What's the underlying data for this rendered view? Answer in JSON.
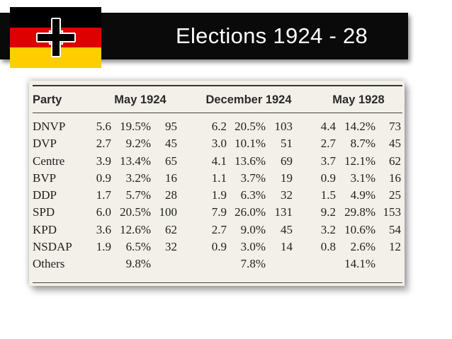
{
  "slide": {
    "title": "Elections 1924 - 28",
    "colors": {
      "title_bar": "#0a0a0a",
      "flag_black": "#000000",
      "flag_red": "#dd0000",
      "flag_gold": "#ffce00"
    },
    "flag_icon": "german-imperial-war-flag-cross"
  },
  "table": {
    "headers": [
      "Party",
      "May 1924",
      "December 1924",
      "May 1928"
    ],
    "rows": [
      [
        "DNVP",
        "5.6",
        "19.5%",
        "95",
        "6.2",
        "20.5%",
        "103",
        "4.4",
        "14.2%",
        "73"
      ],
      [
        "DVP",
        "2.7",
        "9.2%",
        "45",
        "3.0",
        "10.1%",
        "51",
        "2.7",
        "8.7%",
        "45"
      ],
      [
        "Centre",
        "3.9",
        "13.4%",
        "65",
        "4.1",
        "13.6%",
        "69",
        "3.7",
        "12.1%",
        "62"
      ],
      [
        "BVP",
        "0.9",
        "3.2%",
        "16",
        "1.1",
        "3.7%",
        "19",
        "0.9",
        "3.1%",
        "16"
      ],
      [
        "DDP",
        "1.7",
        "5.7%",
        "28",
        "1.9",
        "6.3%",
        "32",
        "1.5",
        "4.9%",
        "25"
      ],
      [
        "SPD",
        "6.0",
        "20.5%",
        "100",
        "7.9",
        "26.0%",
        "131",
        "9.2",
        "29.8%",
        "153"
      ],
      [
        "KPD",
        "3.6",
        "12.6%",
        "62",
        "2.7",
        "9.0%",
        "45",
        "3.2",
        "10.6%",
        "54"
      ],
      [
        "NSDAP",
        "1.9",
        "6.5%",
        "32",
        "0.9",
        "3.0%",
        "14",
        "0.8",
        "2.6%",
        "12"
      ],
      [
        "Others",
        "",
        "9.8%",
        "",
        "",
        "7.8%",
        "",
        "",
        "14.1%",
        ""
      ]
    ]
  }
}
